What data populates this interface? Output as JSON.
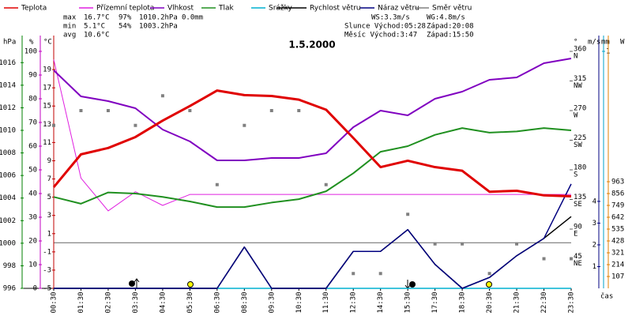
{
  "chart_data": {
    "type": "line",
    "title": "1.5.2000",
    "x_label": "čas",
    "categories": [
      "00:30",
      "01:30",
      "02:30",
      "03:30",
      "04:30",
      "05:30",
      "06:30",
      "08:30",
      "09:30",
      "10:30",
      "11:30",
      "12:30",
      "14:30",
      "15:30",
      "17:30",
      "18:30",
      "20:30",
      "21:30",
      "22:30",
      "23:30"
    ],
    "axes": [
      {
        "label": "hPa",
        "color": "#008000",
        "lim": [
          996,
          1017
        ],
        "ticks": [
          996,
          998,
          1000,
          1002,
          1004,
          1006,
          1008,
          1010,
          1012,
          1014,
          1016
        ]
      },
      {
        "label": "%",
        "color": "#c000c0",
        "lim": [
          0,
          100
        ],
        "ticks": [
          0,
          10,
          20,
          30,
          40,
          50,
          60,
          70,
          80,
          90,
          100
        ]
      },
      {
        "label": "°C",
        "color": "#c00000",
        "lim": [
          -5,
          21
        ],
        "ticks": [
          -5,
          -3,
          -1,
          1,
          3,
          5,
          7,
          9,
          11,
          13,
          15,
          17,
          19
        ]
      },
      {
        "label": "°",
        "color": "#606060",
        "lim": [
          0,
          360
        ],
        "ticks": [
          45,
          90,
          135,
          180,
          225,
          270,
          315,
          360
        ],
        "compass": [
          "NE",
          "E",
          "SE",
          "S",
          "SW",
          "W",
          "NW",
          "N"
        ]
      },
      {
        "label": "m/s",
        "color": "#000080",
        "lim": [
          0,
          10.9
        ],
        "ticks": [
          1,
          2,
          3,
          4
        ]
      },
      {
        "label": "mm",
        "color": "#00a0c8",
        "lim": [
          0,
          1
        ],
        "ticks": [
          1
        ]
      },
      {
        "label": "W",
        "color": "#e08000",
        "lim": [
          0,
          2140
        ],
        "ticks": [
          107,
          214,
          321,
          428,
          535,
          642,
          749,
          856,
          963
        ]
      }
    ],
    "series": [
      {
        "name": "Teplota",
        "color": "#e00000",
        "axis": 2,
        "line_width": 3,
        "values": [
          6.1,
          9.7,
          10.4,
          11.6,
          13.4,
          15.0,
          16.7,
          16.2,
          16.1,
          15.7,
          14.6,
          11.5,
          8.3,
          9.0,
          8.3,
          7.9,
          5.6,
          5.7,
          5.2,
          5.1
        ]
      },
      {
        "name": "Přízemní teplota",
        "color": "#e020e0",
        "axis": 2,
        "line_width": 1,
        "values": [
          20.1,
          7.1,
          3.5,
          5.6,
          4.1,
          5.3,
          5.3,
          5.3,
          5.3,
          5.3,
          5.3,
          5.3,
          5.3,
          5.3,
          5.3,
          5.3,
          5.3,
          5.3,
          5.3,
          5.3
        ]
      },
      {
        "name": "Vlhkost",
        "color": "#8000c0",
        "axis": 1,
        "line_width": 2,
        "values": [
          92,
          81,
          79,
          76,
          67,
          62,
          54,
          54,
          55,
          55,
          57,
          68,
          75,
          73,
          80,
          83,
          88,
          89,
          95,
          97
        ]
      },
      {
        "name": "Tlak",
        "color": "#209020",
        "axis": 0,
        "line_width": 2,
        "values": [
          1004.1,
          1003.5,
          1004.5,
          1004.4,
          1004.1,
          1003.7,
          1003.2,
          1003.2,
          1003.6,
          1003.9,
          1004.6,
          1006.2,
          1008.1,
          1008.6,
          1009.6,
          1010.2,
          1009.8,
          1009.9,
          1010.2,
          1010.0
        ]
      },
      {
        "name": "Srážky",
        "color": "#00b0d0",
        "axis": 5,
        "line_width": 1.5,
        "values": [
          0,
          0,
          0,
          0,
          0,
          0,
          0,
          0,
          0,
          0,
          0,
          0,
          0,
          0,
          0,
          0,
          0,
          0,
          0,
          0
        ]
      },
      {
        "name": "Náraz větru",
        "color": "#000080",
        "axis": 4,
        "line_width": 1.5,
        "values": [
          0,
          0,
          0,
          0,
          0,
          0,
          0,
          1.9,
          0,
          0,
          0,
          1.7,
          1.7,
          2.7,
          1.1,
          0,
          0.5,
          1.5,
          2.3,
          4.8
        ]
      },
      {
        "name": "Rychlost větru",
        "color": "#000000",
        "axis": 4,
        "line_width": 1.5,
        "values": [
          0,
          0,
          0,
          0,
          0,
          0,
          0,
          1.9,
          0,
          0,
          0,
          1.7,
          1.7,
          2.7,
          1.1,
          0,
          0.5,
          1.5,
          2.3,
          3.3
        ]
      },
      {
        "name": "Směr větru",
        "color": "#808080",
        "axis": 3,
        "type": "scatter",
        "values": [
          247.5,
          270,
          270,
          247.5,
          292.5,
          270,
          157.5,
          247.5,
          270,
          270,
          157.5,
          22.5,
          22.5,
          112.5,
          67.5,
          67.5,
          22.5,
          67.5,
          45,
          45
        ]
      }
    ],
    "stats": [
      {
        "label": "max",
        "cells": [
          {
            "text": "16.7°C",
            "color": "#e00000"
          },
          {
            "text": "97%",
            "color": "#c000c0"
          },
          {
            "text": "1010.2hPa",
            "color": "#8000c0"
          },
          {
            "text": "0.0mm",
            "color": "#00b0d0"
          }
        ]
      },
      {
        "label": "min",
        "cells": [
          {
            "text": "5.1°C",
            "color": "#000000"
          },
          {
            "text": "54%",
            "color": "#8000c0"
          },
          {
            "text": "1003.2hPa",
            "color": "#000080"
          }
        ]
      },
      {
        "label": "avg",
        "cells": [
          {
            "text": "10.6°C",
            "color": "#000000"
          }
        ]
      }
    ],
    "info": [
      [
        "WS:3.3m/s",
        "WG:4.8m/s"
      ],
      [
        "Slunce Východ:05:28",
        "Západ:20:08"
      ],
      [
        "Měsíc Východ:3:47",
        "Západ:15:50"
      ]
    ]
  }
}
